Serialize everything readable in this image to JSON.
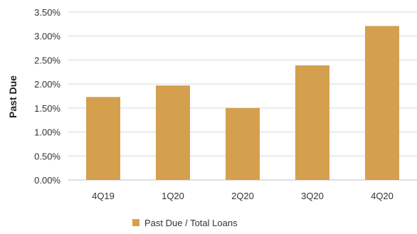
{
  "chart_data": {
    "type": "bar",
    "categories": [
      "4Q19",
      "1Q20",
      "2Q20",
      "3Q20",
      "4Q20"
    ],
    "series": [
      {
        "name": "Past Due / Total Loans",
        "values": [
          1.73,
          1.97,
          1.5,
          2.39,
          3.21
        ]
      }
    ],
    "ylabel": "Past Due",
    "xlabel": "",
    "ylim": [
      0,
      3.5
    ],
    "yticks": [
      "0.00%",
      "0.50%",
      "1.00%",
      "1.50%",
      "2.00%",
      "2.50%",
      "3.00%",
      "3.50%"
    ],
    "grid": true,
    "legend": "bottom-center",
    "colors": {
      "bar": "#D4A04E",
      "grid": "#D9D9D9",
      "axis": "#BFBFBF"
    }
  }
}
